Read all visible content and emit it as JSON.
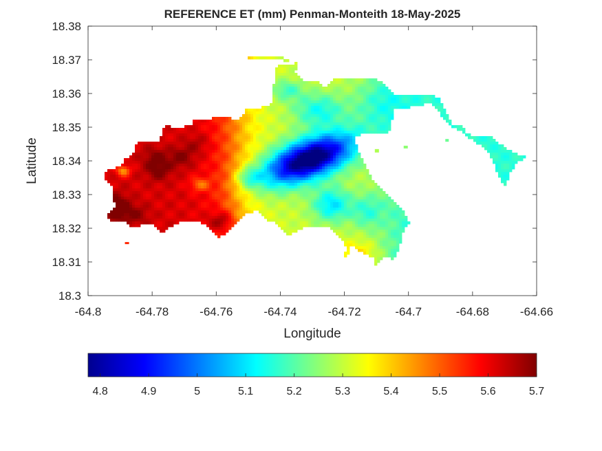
{
  "chart_data": {
    "type": "heatmap",
    "title": "REFERENCE ET (mm) Penman-Monteith 18-May-2025",
    "xlabel": "Longitude",
    "ylabel": "Latitude",
    "xlim": [
      -64.8,
      -64.66
    ],
    "ylim": [
      18.3,
      18.38
    ],
    "x_ticks": [
      -64.8,
      -64.78,
      -64.76,
      -64.74,
      -64.72,
      -64.7,
      -64.68,
      -64.66
    ],
    "x_tick_labels": [
      "-64.8",
      "-64.78",
      "-64.76",
      "-64.74",
      "-64.72",
      "-64.7",
      "-64.68",
      "-64.66"
    ],
    "y_ticks": [
      18.3,
      18.31,
      18.32,
      18.33,
      18.34,
      18.35,
      18.36,
      18.37,
      18.38
    ],
    "y_tick_labels": [
      "18.3",
      "18.31",
      "18.32",
      "18.33",
      "18.34",
      "18.35",
      "18.36",
      "18.37",
      "18.38"
    ],
    "grid": false,
    "colormap": "jet",
    "colorbar": {
      "orientation": "horizontal",
      "placement": "below",
      "range": [
        4.775,
        5.7
      ],
      "ticks": [
        4.8,
        4.9,
        5.0,
        5.1,
        5.2,
        5.3,
        5.4,
        5.5,
        5.6,
        5.7
      ],
      "tick_labels": [
        "4.8",
        "4.9",
        "5",
        "5.1",
        "5.2",
        "5.3",
        "5.4",
        "5.5",
        "5.6",
        "5.7"
      ],
      "colors": [
        "#00008f",
        "#0000ff",
        "#0080ff",
        "#00ffff",
        "#80ff80",
        "#ffff00",
        "#ff8000",
        "#ff0000",
        "#800000"
      ]
    },
    "field_summary": {
      "west_region_lon_range": [
        -64.795,
        -64.753
      ],
      "west_region_typical_value": 5.55,
      "central_minimum_center": [
        -64.735,
        18.341
      ],
      "central_minimum_value": 4.78,
      "northeast_tail_value": 5.18
    }
  }
}
